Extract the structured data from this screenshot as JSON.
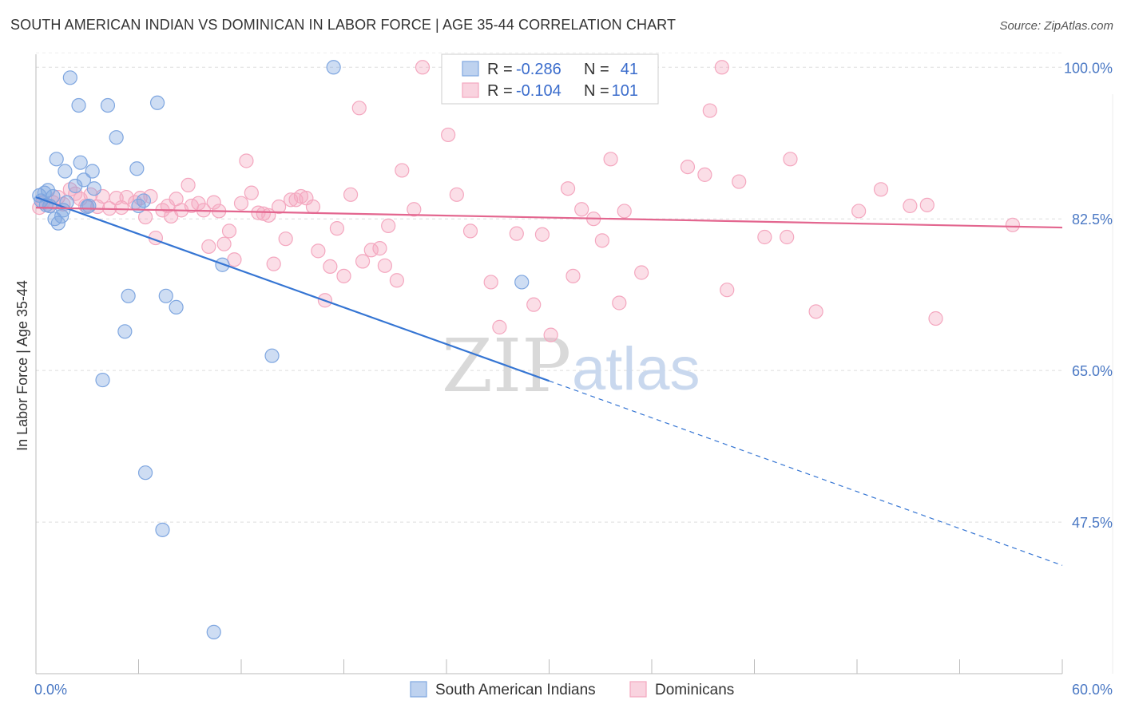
{
  "title": "SOUTH AMERICAN INDIAN VS DOMINICAN IN LABOR FORCE | AGE 35-44 CORRELATION CHART",
  "source": "Source: ZipAtlas.com",
  "watermark": {
    "zip": "ZIP",
    "atlas": "atlas"
  },
  "chart_data": {
    "type": "scatter",
    "title": "SOUTH AMERICAN INDIAN VS DOMINICAN IN LABOR FORCE | AGE 35-44 CORRELATION CHART",
    "xlabel": "",
    "ylabel": "In Labor Force | Age 35-44",
    "xlim": [
      0,
      60
    ],
    "ylim": [
      30,
      101.5
    ],
    "x_tick_labels": [
      "0.0%",
      "60.0%"
    ],
    "y_ticks": [
      47.5,
      65.0,
      82.5,
      100.0
    ],
    "y_tick_labels": [
      "47.5%",
      "65.0%",
      "82.5%",
      "100.0%"
    ],
    "grid": true,
    "legend_position": "top-center",
    "series": [
      {
        "name": "South American Indians",
        "color": "#7ea6e0",
        "line_color": "#3575d3",
        "r_label": "R =",
        "r_value": "-0.286",
        "n_label": "N =",
        "n_value": "41",
        "trend": {
          "x0": 0.0,
          "y0": 85.0,
          "x1": 30.0,
          "y1": 63.8,
          "dashed_to_x": 60.0,
          "dashed_to_y": 42.5
        },
        "points": [
          [
            0.2,
            85.2
          ],
          [
            0.3,
            84.6
          ],
          [
            0.5,
            85.5
          ],
          [
            0.6,
            84.1
          ],
          [
            0.7,
            85.8
          ],
          [
            0.8,
            84.0
          ],
          [
            1.0,
            85.1
          ],
          [
            1.1,
            82.5
          ],
          [
            1.2,
            89.4
          ],
          [
            1.3,
            82.0
          ],
          [
            1.5,
            82.8
          ],
          [
            1.6,
            83.5
          ],
          [
            1.7,
            88.0
          ],
          [
            2.0,
            98.8
          ],
          [
            2.3,
            86.3
          ],
          [
            2.5,
            95.6
          ],
          [
            2.6,
            89.0
          ],
          [
            2.8,
            87.0
          ],
          [
            3.0,
            83.9
          ],
          [
            3.1,
            84.0
          ],
          [
            3.3,
            88.0
          ],
          [
            3.4,
            86.0
          ],
          [
            4.2,
            95.6
          ],
          [
            4.7,
            91.9
          ],
          [
            5.2,
            69.5
          ],
          [
            5.4,
            73.6
          ],
          [
            5.9,
            88.3
          ],
          [
            6.3,
            84.6
          ],
          [
            7.1,
            95.9
          ],
          [
            7.6,
            73.6
          ],
          [
            8.2,
            72.3
          ],
          [
            3.9,
            63.9
          ],
          [
            6.4,
            53.2
          ],
          [
            7.4,
            46.6
          ],
          [
            10.4,
            34.8
          ],
          [
            10.9,
            77.2
          ],
          [
            13.8,
            66.7
          ],
          [
            17.4,
            100.0
          ],
          [
            28.4,
            75.2
          ],
          [
            6.0,
            84.0
          ],
          [
            1.8,
            84.4
          ]
        ]
      },
      {
        "name": "Dominicans",
        "color": "#f4a7bf",
        "line_color": "#e3668f",
        "r_label": "R =",
        "r_value": "-0.104",
        "n_label": "N =",
        "n_value": "101",
        "trend": {
          "x0": 0.0,
          "y0": 83.8,
          "x1": 60.0,
          "y1": 81.5
        },
        "points": [
          [
            0.2,
            83.8
          ],
          [
            0.4,
            84.4
          ],
          [
            0.8,
            84.0
          ],
          [
            1.0,
            84.4
          ],
          [
            1.3,
            85.0
          ],
          [
            1.6,
            84.2
          ],
          [
            2.0,
            85.9
          ],
          [
            2.3,
            85.4
          ],
          [
            2.6,
            84.8
          ],
          [
            2.9,
            84.0
          ],
          [
            3.2,
            85.3
          ],
          [
            3.6,
            83.9
          ],
          [
            3.9,
            85.1
          ],
          [
            4.3,
            83.7
          ],
          [
            4.7,
            84.9
          ],
          [
            5.0,
            83.8
          ],
          [
            5.3,
            85.0
          ],
          [
            5.8,
            84.4
          ],
          [
            6.1,
            84.9
          ],
          [
            6.4,
            82.7
          ],
          [
            6.7,
            85.1
          ],
          [
            7.0,
            80.3
          ],
          [
            7.4,
            83.5
          ],
          [
            7.7,
            84.0
          ],
          [
            7.9,
            82.8
          ],
          [
            8.2,
            84.8
          ],
          [
            8.5,
            83.5
          ],
          [
            8.9,
            86.4
          ],
          [
            9.1,
            84.0
          ],
          [
            9.5,
            84.3
          ],
          [
            9.8,
            83.5
          ],
          [
            10.1,
            79.3
          ],
          [
            10.4,
            84.4
          ],
          [
            10.7,
            83.4
          ],
          [
            11.0,
            79.6
          ],
          [
            11.3,
            81.1
          ],
          [
            11.6,
            77.8
          ],
          [
            12.0,
            84.3
          ],
          [
            12.3,
            89.2
          ],
          [
            12.6,
            85.5
          ],
          [
            13.0,
            83.2
          ],
          [
            13.3,
            83.1
          ],
          [
            13.6,
            82.9
          ],
          [
            13.9,
            77.3
          ],
          [
            14.2,
            83.9
          ],
          [
            14.6,
            80.2
          ],
          [
            14.9,
            84.7
          ],
          [
            15.2,
            84.7
          ],
          [
            15.5,
            85.1
          ],
          [
            15.8,
            84.9
          ],
          [
            16.2,
            83.9
          ],
          [
            16.5,
            78.8
          ],
          [
            16.9,
            73.1
          ],
          [
            17.2,
            77.0
          ],
          [
            17.6,
            81.4
          ],
          [
            18.0,
            75.9
          ],
          [
            18.4,
            85.3
          ],
          [
            18.9,
            95.3
          ],
          [
            19.1,
            77.6
          ],
          [
            19.6,
            78.9
          ],
          [
            20.1,
            79.1
          ],
          [
            20.4,
            77.1
          ],
          [
            20.6,
            81.7
          ],
          [
            21.1,
            75.4
          ],
          [
            21.4,
            88.1
          ],
          [
            22.1,
            83.6
          ],
          [
            22.6,
            100.0
          ],
          [
            24.1,
            92.2
          ],
          [
            24.6,
            85.3
          ],
          [
            25.4,
            81.1
          ],
          [
            26.6,
            75.2
          ],
          [
            27.1,
            70.0
          ],
          [
            28.1,
            80.8
          ],
          [
            29.1,
            72.6
          ],
          [
            29.6,
            80.7
          ],
          [
            30.1,
            69.1
          ],
          [
            31.1,
            86.0
          ],
          [
            31.4,
            75.9
          ],
          [
            31.9,
            83.6
          ],
          [
            32.6,
            82.5
          ],
          [
            33.1,
            80.0
          ],
          [
            33.6,
            89.4
          ],
          [
            34.1,
            72.8
          ],
          [
            34.4,
            83.4
          ],
          [
            35.4,
            76.3
          ],
          [
            38.1,
            88.5
          ],
          [
            39.1,
            87.6
          ],
          [
            39.4,
            95.0
          ],
          [
            40.1,
            100.0
          ],
          [
            40.4,
            74.3
          ],
          [
            41.1,
            86.8
          ],
          [
            42.6,
            80.4
          ],
          [
            43.9,
            80.4
          ],
          [
            44.1,
            89.4
          ],
          [
            45.6,
            71.8
          ],
          [
            48.1,
            83.4
          ],
          [
            49.4,
            85.9
          ],
          [
            51.1,
            84.0
          ],
          [
            52.6,
            71.0
          ],
          [
            52.1,
            84.1
          ],
          [
            57.1,
            81.8
          ]
        ]
      }
    ]
  }
}
